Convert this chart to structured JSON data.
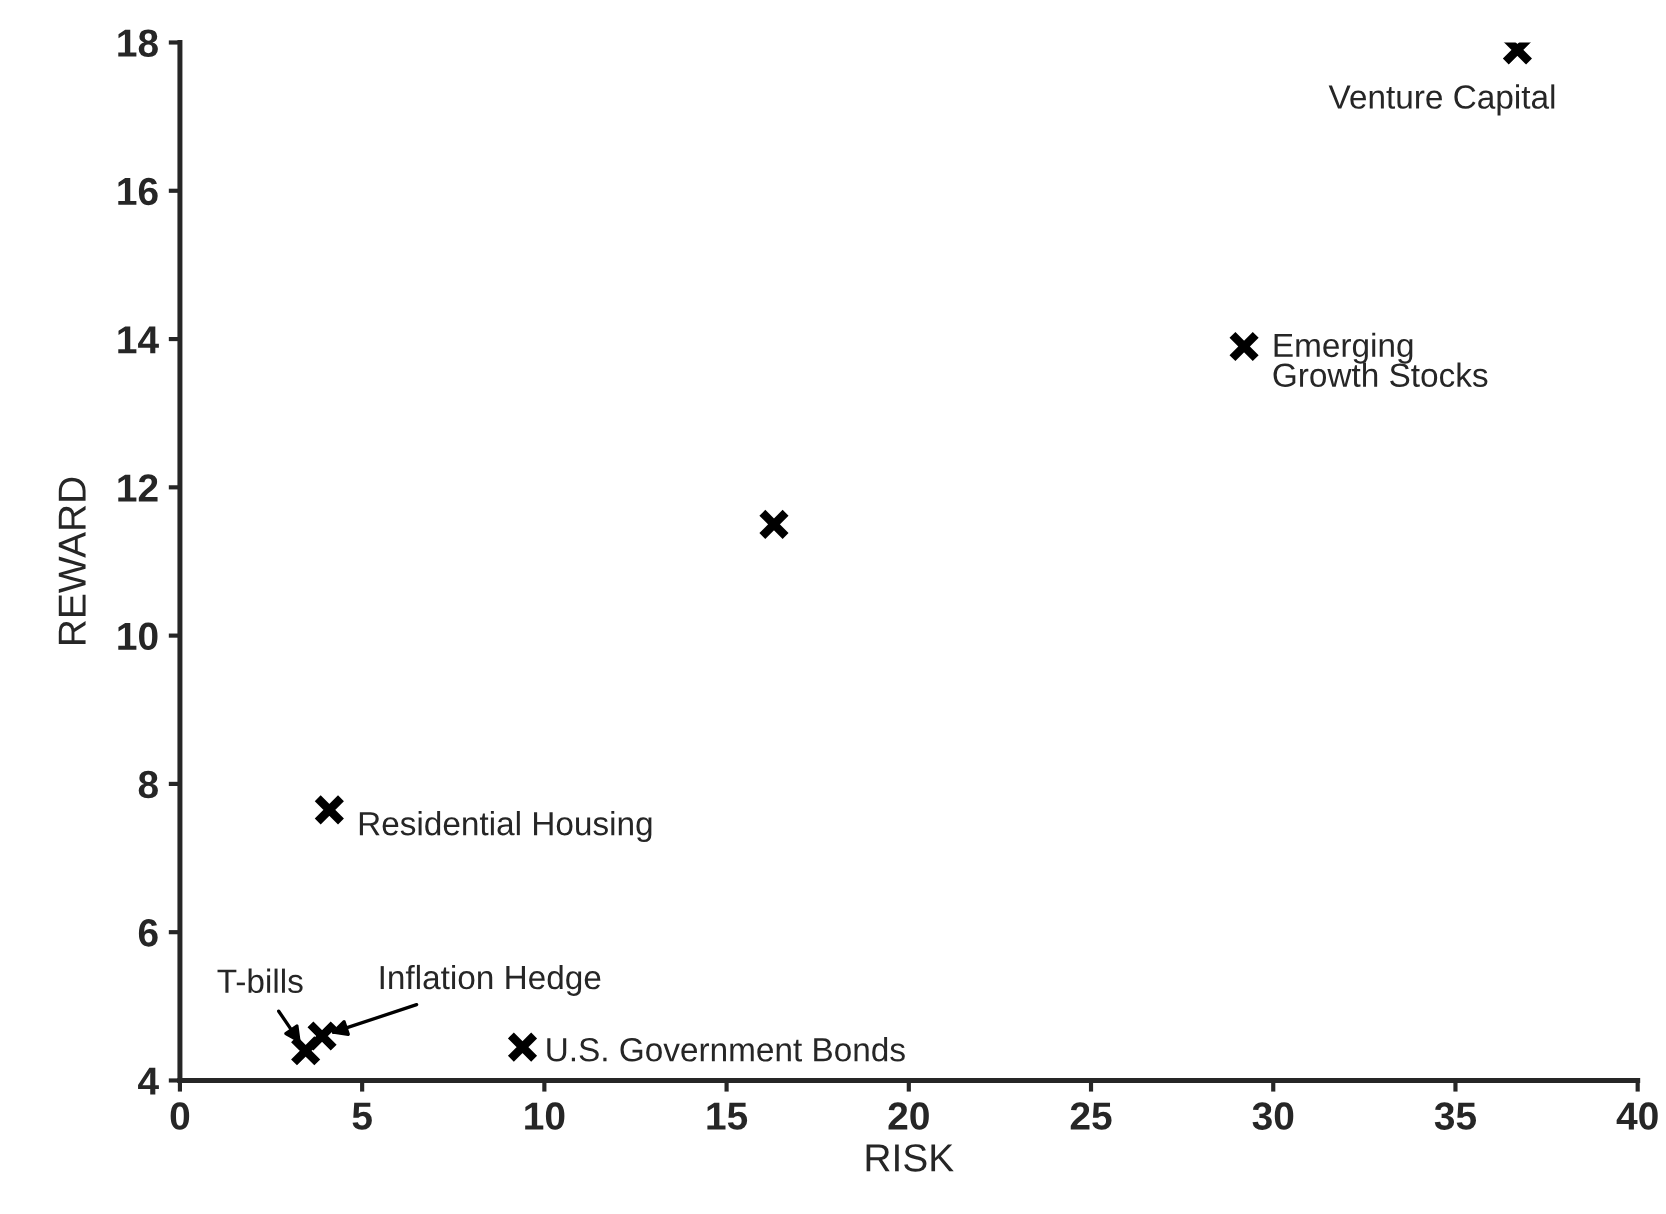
{
  "chart_data": {
    "type": "scatter",
    "xlabel": "RISK",
    "ylabel": "REWARD",
    "x": [
      36.7,
      29.2,
      16.3,
      4.1,
      3.45,
      3.9,
      9.4
    ],
    "values": [
      17.9,
      13.9,
      11.5,
      7.65,
      4.4,
      4.6,
      4.45
    ],
    "color": "#000000",
    "marker": "cross",
    "grid": false,
    "legend": false,
    "xlim": [
      0,
      40
    ],
    "xticks": [
      0,
      5,
      10,
      15,
      20,
      25,
      30,
      35,
      40
    ],
    "ylim": [
      4,
      18
    ],
    "yticks": [
      4,
      6,
      8,
      10,
      12,
      14,
      16,
      18
    ],
    "annotations": [
      {
        "text": "Venture Capital",
        "x": 36.7,
        "y": 17.9
      },
      {
        "text": "Emerging\nGrowth Stocks",
        "x": 29.2,
        "y": 13.9
      },
      {
        "text": "Residential Housing",
        "x": 4.1,
        "y": 7.65
      },
      {
        "text": "T-bills",
        "x": 3.45,
        "y": 4.4
      },
      {
        "text": "Inflation Hedge",
        "x": 3.9,
        "y": 4.6
      },
      {
        "text": "U.S. Government Bonds",
        "x": 9.4,
        "y": 4.45
      }
    ]
  }
}
